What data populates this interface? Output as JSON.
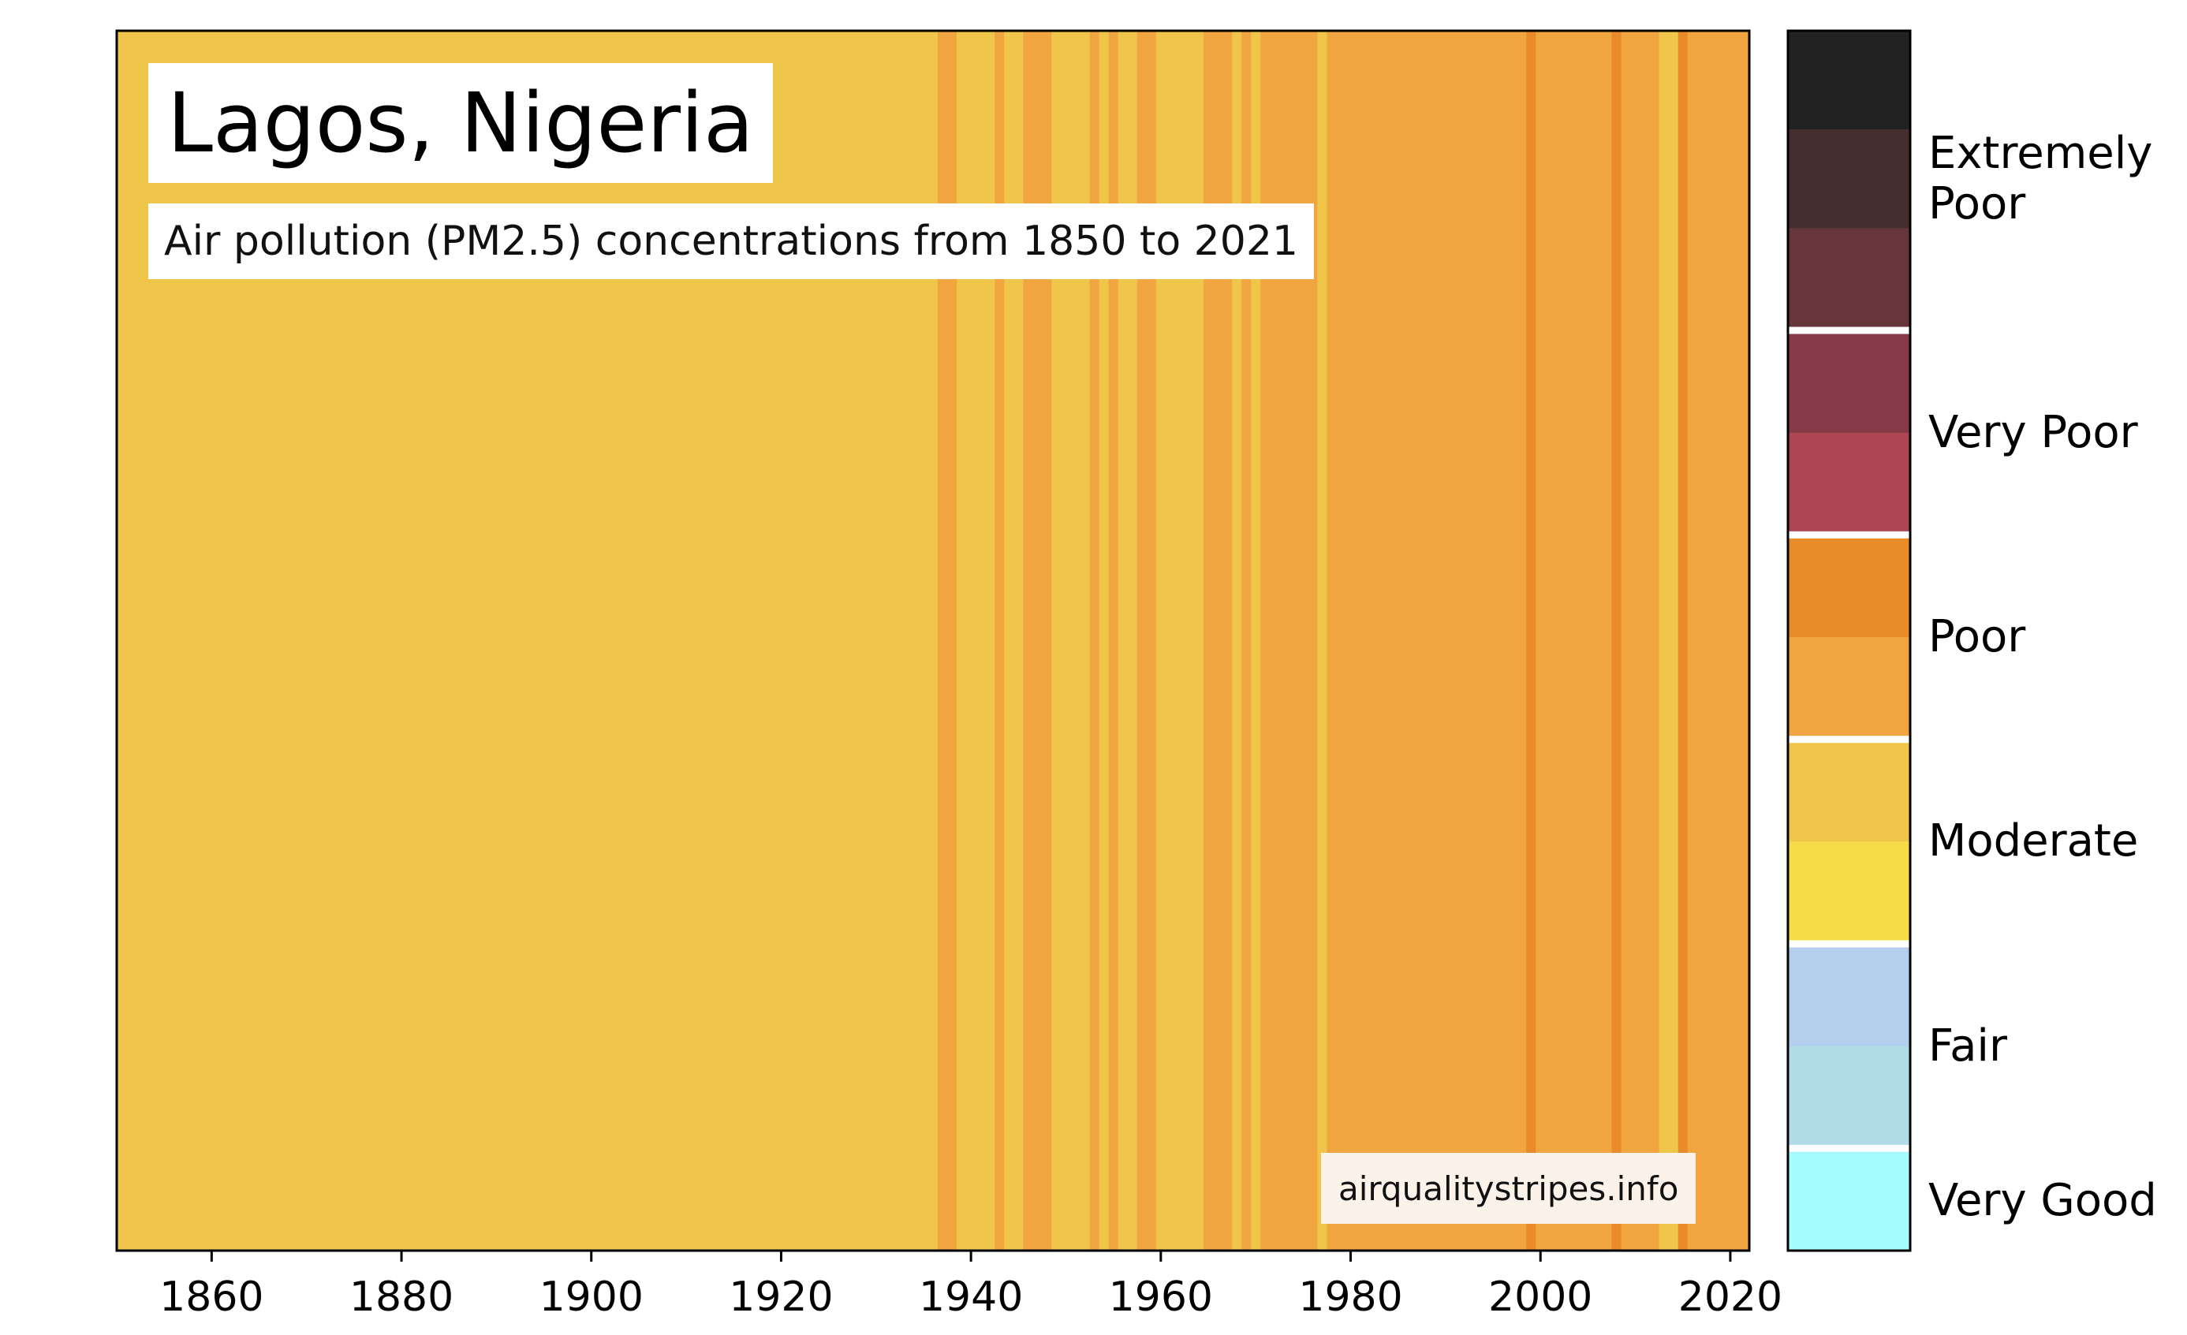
{
  "title": "Lagos, Nigeria",
  "subtitle": "Air pollution (PM2.5) concentrations from 1850 to 2021",
  "credit": "airqualitystripes.info",
  "chart_data": {
    "type": "heatmap",
    "xlim": [
      1850,
      2022
    ],
    "xticks": [
      "1860",
      "1880",
      "1900",
      "1920",
      "1940",
      "1960",
      "1980",
      "2000",
      "2020"
    ],
    "grid": false,
    "legend_position": "right",
    "colors": {
      "moderate_high": "#f0c64a",
      "poor_low": "#f0a540",
      "poor_high": "#e98b29",
      "moderate_low": "#f5dc48"
    },
    "stripes": [
      {
        "from": 1850,
        "to": 1936.5,
        "color": "moderate_high"
      },
      {
        "from": 1936.5,
        "to": 1938.5,
        "color": "poor_low"
      },
      {
        "from": 1938.5,
        "to": 1942.5,
        "color": "moderate_high"
      },
      {
        "from": 1942.5,
        "to": 1943.5,
        "color": "poor_low"
      },
      {
        "from": 1943.5,
        "to": 1945.5,
        "color": "moderate_high"
      },
      {
        "from": 1945.5,
        "to": 1948.5,
        "color": "poor_low"
      },
      {
        "from": 1948.5,
        "to": 1952.5,
        "color": "moderate_high"
      },
      {
        "from": 1952.5,
        "to": 1953.5,
        "color": "poor_low"
      },
      {
        "from": 1953.5,
        "to": 1954.5,
        "color": "moderate_high"
      },
      {
        "from": 1954.5,
        "to": 1955.5,
        "color": "poor_low"
      },
      {
        "from": 1955.5,
        "to": 1957.5,
        "color": "moderate_high"
      },
      {
        "from": 1957.5,
        "to": 1959.5,
        "color": "poor_low"
      },
      {
        "from": 1959.5,
        "to": 1964.5,
        "color": "moderate_high"
      },
      {
        "from": 1964.5,
        "to": 1967.5,
        "color": "poor_low"
      },
      {
        "from": 1967.5,
        "to": 1968.5,
        "color": "moderate_high"
      },
      {
        "from": 1968.5,
        "to": 1969.5,
        "color": "poor_low"
      },
      {
        "from": 1969.5,
        "to": 1970.5,
        "color": "moderate_high"
      },
      {
        "from": 1970.5,
        "to": 1976.5,
        "color": "poor_low"
      },
      {
        "from": 1976.5,
        "to": 1977.5,
        "color": "moderate_high"
      },
      {
        "from": 1977.5,
        "to": 1998.5,
        "color": "poor_low"
      },
      {
        "from": 1998.5,
        "to": 1999.5,
        "color": "poor_high"
      },
      {
        "from": 1999.5,
        "to": 2007.5,
        "color": "poor_low"
      },
      {
        "from": 2007.5,
        "to": 2008.5,
        "color": "poor_high"
      },
      {
        "from": 2008.5,
        "to": 2012.5,
        "color": "poor_low"
      },
      {
        "from": 2012.5,
        "to": 2014.5,
        "color": "moderate_high"
      },
      {
        "from": 2014.5,
        "to": 2015.5,
        "color": "poor_high"
      },
      {
        "from": 2015.5,
        "to": 2022,
        "color": "poor_low"
      }
    ],
    "legend": {
      "categories": [
        {
          "label": "Extremely\nPoor",
          "colors": [
            "#222222",
            "#442e30",
            "#66363a"
          ]
        },
        {
          "label": "Very Poor",
          "colors": [
            "#863a48",
            "#ad4552"
          ]
        },
        {
          "label": "Poor",
          "colors": [
            "#e98b29",
            "#f0a540"
          ]
        },
        {
          "label": "Moderate",
          "colors": [
            "#f0c64a",
            "#f5dc48"
          ]
        },
        {
          "label": "Fair",
          "colors": [
            "#b3cfed",
            "#b1dbe6"
          ]
        },
        {
          "label": "Very Good",
          "colors": [
            "#a5fbfe"
          ]
        }
      ]
    }
  }
}
